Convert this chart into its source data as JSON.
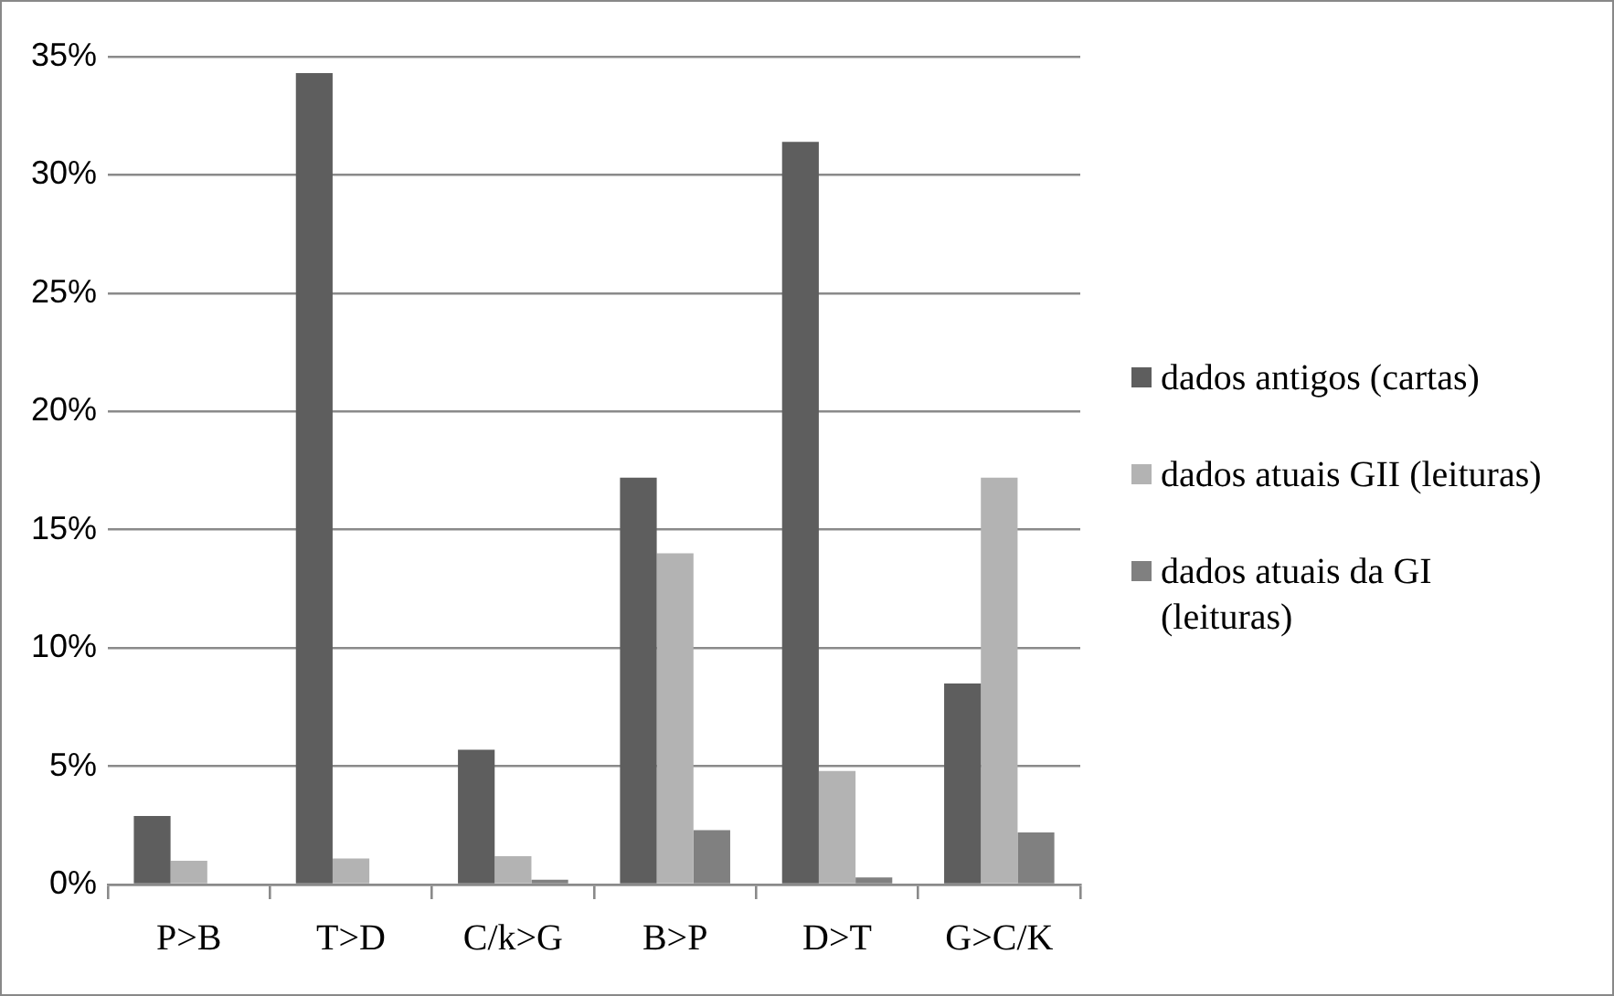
{
  "chart_data": {
    "type": "bar",
    "categories": [
      "P>B",
      "T>D",
      "C/k>G",
      "B>P",
      "D>T",
      "G>C/K"
    ],
    "series": [
      {
        "name": "dados antigos (cartas)",
        "color": "#5e5e5e",
        "values": [
          2.9,
          34.3,
          5.7,
          17.2,
          31.4,
          8.5
        ]
      },
      {
        "name": "dados atuais GII (leituras)",
        "color": "#b3b3b3",
        "values": [
          1.0,
          1.1,
          1.2,
          14.0,
          4.8,
          17.2
        ]
      },
      {
        "name": "dados atuais da GI (leituras)",
        "color": "#808080",
        "values": [
          0,
          0,
          0.2,
          2.3,
          0.3,
          2.2
        ]
      }
    ],
    "ylim": [
      0,
      35
    ],
    "yticks": [
      {
        "value": 0,
        "label": "0%"
      },
      {
        "value": 5,
        "label": "5%"
      },
      {
        "value": 10,
        "label": "10%"
      },
      {
        "value": 15,
        "label": "15%"
      },
      {
        "value": 20,
        "label": "20%"
      },
      {
        "value": 25,
        "label": "25%"
      },
      {
        "value": 30,
        "label": "30%"
      },
      {
        "value": 35,
        "label": "35%"
      }
    ],
    "grid": "y",
    "legend": "right"
  }
}
